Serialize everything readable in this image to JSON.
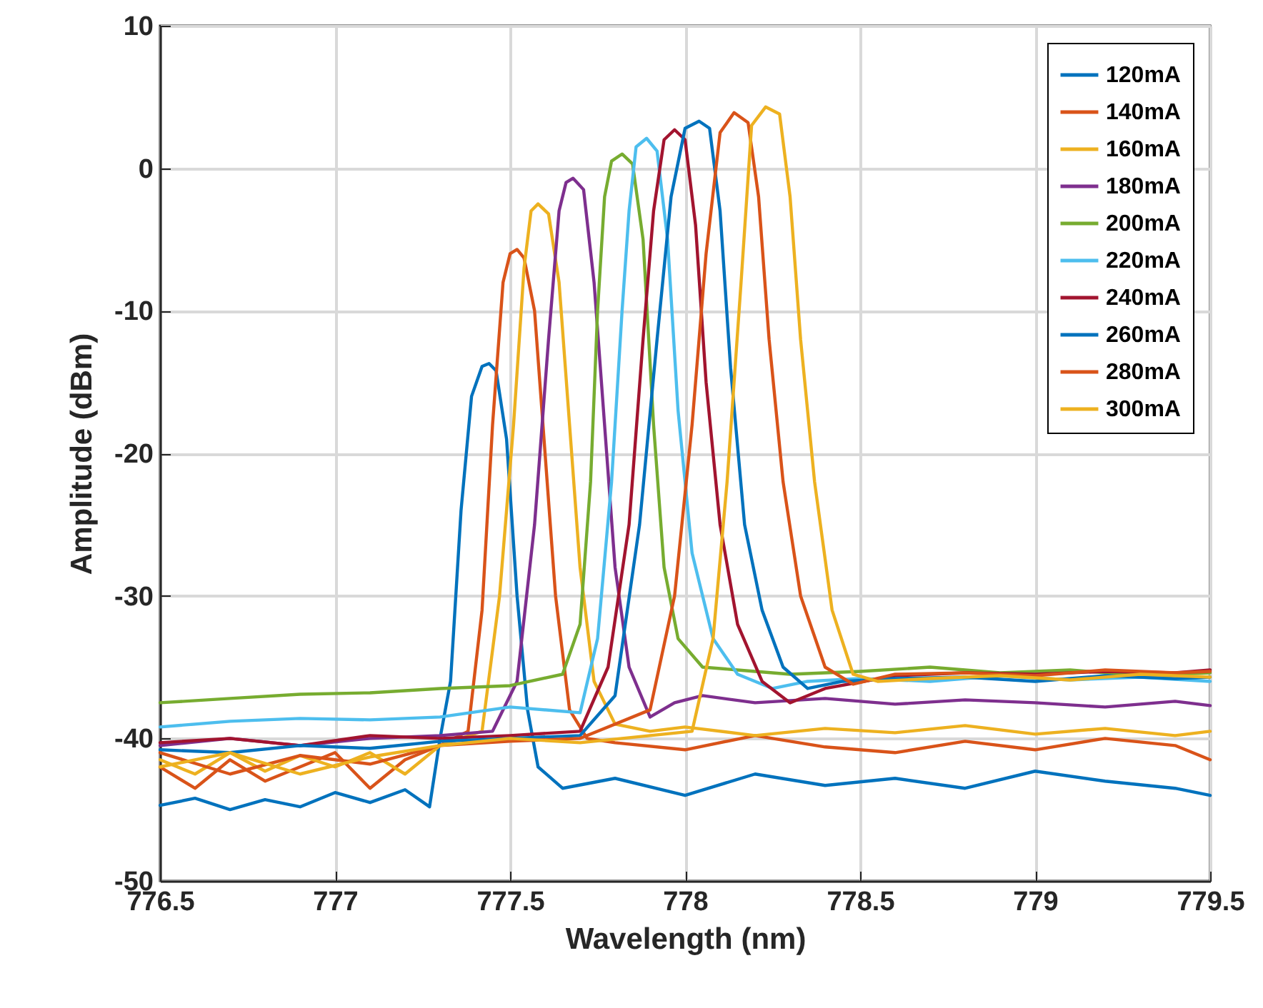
{
  "chart_data": {
    "type": "line",
    "xlabel": "Wavelength (nm)",
    "ylabel": "Amplitude (dBm)",
    "xlim": [
      776.5,
      779.5
    ],
    "xticks": [
      776.5,
      777,
      777.5,
      778,
      778.5,
      779,
      779.5
    ],
    "ylim": [
      -50,
      10
    ],
    "yticks": [
      -50,
      -40,
      -30,
      -20,
      -10,
      0,
      10
    ],
    "grid": true,
    "legend": "top right",
    "series": [
      {
        "name": "120mA",
        "color": "#0072bd",
        "x": [
          776.5,
          776.6,
          776.7,
          776.8,
          776.9,
          777.0,
          777.1,
          777.2,
          777.27,
          777.3,
          777.33,
          777.36,
          777.39,
          777.42,
          777.44,
          777.46,
          777.49,
          777.52,
          777.55,
          777.58,
          777.65,
          777.8,
          778.0,
          778.2,
          778.4,
          778.6,
          778.8,
          779.0,
          779.2,
          779.4,
          779.5
        ],
        "values": [
          -44.7,
          -44.2,
          -45,
          -44.3,
          -44.8,
          -43.8,
          -44.5,
          -43.6,
          -44.8,
          -40,
          -36,
          -24,
          -16,
          -13.9,
          -13.7,
          -14.2,
          -19,
          -30,
          -38,
          -42,
          -43.5,
          -42.8,
          -44,
          -42.5,
          -43.3,
          -42.8,
          -43.5,
          -42.3,
          -43,
          -43.5,
          -44
        ]
      },
      {
        "name": "140mA",
        "color": "#d95319",
        "x": [
          776.5,
          776.6,
          776.7,
          776.8,
          776.9,
          777.0,
          777.1,
          777.2,
          777.3,
          777.38,
          777.42,
          777.45,
          777.48,
          777.5,
          777.52,
          777.54,
          777.57,
          777.6,
          777.63,
          777.67,
          777.72,
          777.8,
          778.0,
          778.2,
          778.4,
          778.6,
          778.8,
          779.0,
          779.2,
          779.4,
          779.5
        ],
        "values": [
          -42,
          -43.5,
          -41.5,
          -43,
          -42,
          -41,
          -43.5,
          -41.5,
          -40.5,
          -39.5,
          -31,
          -18,
          -8,
          -6,
          -5.7,
          -6.3,
          -10,
          -20,
          -30,
          -38,
          -40,
          -40.3,
          -40.8,
          -39.8,
          -40.6,
          -41,
          -40.2,
          -40.8,
          -40,
          -40.5,
          -41.5
        ]
      },
      {
        "name": "160mA",
        "color": "#edb120",
        "x": [
          776.5,
          776.6,
          776.7,
          776.8,
          776.9,
          777.0,
          777.1,
          777.2,
          777.3,
          777.42,
          777.47,
          777.51,
          777.54,
          777.56,
          777.58,
          777.61,
          777.64,
          777.67,
          777.7,
          777.74,
          777.8,
          777.9,
          778.0,
          778.2,
          778.4,
          778.6,
          778.8,
          779.0,
          779.2,
          779.4,
          779.5
        ],
        "values": [
          -41.5,
          -42.5,
          -41,
          -42.3,
          -41.2,
          -42,
          -41,
          -42.5,
          -40.5,
          -39.5,
          -30,
          -18,
          -7,
          -3,
          -2.5,
          -3.2,
          -8,
          -18,
          -28,
          -36,
          -39,
          -39.5,
          -39.2,
          -39.8,
          -39.3,
          -39.6,
          -39.1,
          -39.7,
          -39.3,
          -39.8,
          -39.5
        ]
      },
      {
        "name": "180mA",
        "color": "#7e2f8e",
        "x": [
          776.5,
          776.7,
          776.9,
          777.1,
          777.3,
          777.45,
          777.52,
          777.57,
          777.61,
          777.64,
          777.66,
          777.68,
          777.71,
          777.74,
          777.77,
          777.8,
          777.84,
          777.9,
          777.97,
          778.05,
          778.2,
          778.4,
          778.6,
          778.8,
          779.0,
          779.2,
          779.4,
          779.5
        ],
        "values": [
          -40.5,
          -40,
          -40.5,
          -40,
          -39.8,
          -39.5,
          -36,
          -25,
          -12,
          -3,
          -1,
          -0.7,
          -1.5,
          -8,
          -18,
          -28,
          -35,
          -38.5,
          -37.5,
          -37,
          -37.5,
          -37.2,
          -37.6,
          -37.3,
          -37.5,
          -37.8,
          -37.4,
          -37.7
        ]
      },
      {
        "name": "200mA",
        "color": "#77ac30",
        "x": [
          776.5,
          776.7,
          776.9,
          777.1,
          777.3,
          777.5,
          777.65,
          777.7,
          777.73,
          777.75,
          777.77,
          777.79,
          777.82,
          777.85,
          777.88,
          777.91,
          777.94,
          777.98,
          778.05,
          778.15,
          778.3,
          778.5,
          778.7,
          778.9,
          779.1,
          779.3,
          779.5
        ],
        "values": [
          -37.5,
          -37.2,
          -36.9,
          -36.8,
          -36.5,
          -36.3,
          -35.5,
          -32,
          -22,
          -10,
          -2,
          0.5,
          1,
          0.3,
          -5,
          -18,
          -28,
          -33,
          -35,
          -35.2,
          -35.5,
          -35.3,
          -35,
          -35.4,
          -35.2,
          -35.6,
          -35.4
        ]
      },
      {
        "name": "220mA",
        "color": "#4dbeee",
        "x": [
          776.5,
          776.7,
          776.9,
          777.1,
          777.3,
          777.5,
          777.7,
          777.75,
          777.79,
          777.82,
          777.84,
          777.86,
          777.89,
          777.92,
          777.95,
          777.98,
          778.02,
          778.08,
          778.15,
          778.25,
          778.35,
          778.5,
          778.7,
          778.9,
          779.1,
          779.3,
          779.5
        ],
        "values": [
          -39.2,
          -38.8,
          -38.6,
          -38.7,
          -38.5,
          -37.8,
          -38.2,
          -33,
          -22,
          -10,
          -3,
          1.5,
          2.1,
          1.2,
          -5,
          -17,
          -27,
          -33,
          -35.5,
          -36.5,
          -36,
          -35.8,
          -36,
          -35.6,
          -35.9,
          -35.7,
          -36
        ]
      },
      {
        "name": "240mA",
        "color": "#a2142f",
        "x": [
          776.5,
          776.7,
          776.9,
          777.1,
          777.3,
          777.5,
          777.7,
          777.78,
          777.84,
          777.88,
          777.91,
          777.94,
          777.97,
          778.0,
          778.03,
          778.06,
          778.1,
          778.15,
          778.22,
          778.3,
          778.4,
          778.6,
          778.8,
          779.0,
          779.2,
          779.4,
          779.5
        ],
        "values": [
          -40.3,
          -40,
          -40.5,
          -39.8,
          -40,
          -39.8,
          -39.5,
          -35,
          -25,
          -12,
          -3,
          2,
          2.7,
          2,
          -4,
          -15,
          -25,
          -32,
          -36,
          -37.5,
          -36.5,
          -35.6,
          -35.4,
          -35.5,
          -35.3,
          -35.4,
          -35.2
        ]
      },
      {
        "name": "260mA",
        "color": "#0072bd",
        "x": [
          776.5,
          776.7,
          776.9,
          777.1,
          777.3,
          777.5,
          777.7,
          777.8,
          777.87,
          777.92,
          777.96,
          778.0,
          778.04,
          778.07,
          778.1,
          778.13,
          778.17,
          778.22,
          778.28,
          778.35,
          778.45,
          778.6,
          778.8,
          779.0,
          779.2,
          779.4,
          779.5
        ],
        "values": [
          -40.8,
          -41,
          -40.5,
          -40.7,
          -40.2,
          -40,
          -39.8,
          -37,
          -25,
          -12,
          -2,
          2.8,
          3.3,
          2.8,
          -3,
          -14,
          -25,
          -31,
          -35,
          -36.5,
          -36,
          -35.8,
          -35.7,
          -36,
          -35.6,
          -35.8,
          -35.7
        ]
      },
      {
        "name": "280mA",
        "color": "#d95319",
        "x": [
          776.5,
          776.7,
          776.9,
          777.1,
          777.3,
          777.5,
          777.7,
          777.9,
          777.97,
          778.02,
          778.06,
          778.1,
          778.14,
          778.18,
          778.21,
          778.24,
          778.28,
          778.33,
          778.4,
          778.48,
          778.6,
          778.8,
          779.0,
          779.2,
          779.4,
          779.5
        ],
        "values": [
          -41,
          -42.5,
          -41.2,
          -41.8,
          -40.5,
          -40.2,
          -40,
          -38,
          -30,
          -18,
          -6,
          2.5,
          3.9,
          3.2,
          -2,
          -12,
          -22,
          -30,
          -35,
          -36.2,
          -35.5,
          -35.4,
          -35.6,
          -35.2,
          -35.4,
          -35.3
        ]
      },
      {
        "name": "300mA",
        "color": "#edb120",
        "x": [
          776.5,
          776.7,
          776.9,
          777.1,
          777.3,
          777.5,
          777.7,
          777.9,
          778.02,
          778.08,
          778.12,
          778.16,
          778.19,
          778.23,
          778.27,
          778.3,
          778.33,
          778.37,
          778.42,
          778.48,
          778.55,
          778.7,
          778.9,
          779.1,
          779.3,
          779.5
        ],
        "values": [
          -42,
          -41,
          -42.5,
          -41.3,
          -40.5,
          -40,
          -40.3,
          -39.8,
          -39.5,
          -33,
          -22,
          -8,
          3,
          4.3,
          3.8,
          -2,
          -12,
          -22,
          -31,
          -35.5,
          -36,
          -35.8,
          -35.6,
          -35.9,
          -35.5,
          -35.7
        ]
      }
    ]
  }
}
